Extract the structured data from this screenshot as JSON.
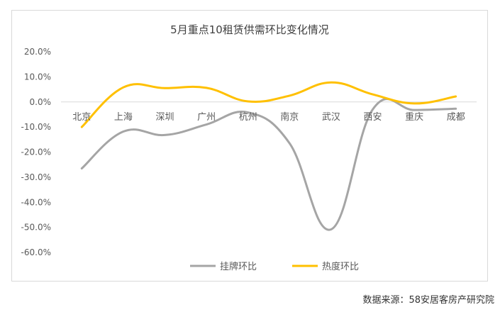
{
  "source": "数据来源：58安居客房产研究院",
  "colors": {
    "series1": "#a5a5a5",
    "series2": "#ffc000",
    "grid": "#d9d9d9",
    "text": "#595959",
    "title": "#404040"
  },
  "chart_data": {
    "type": "line",
    "title": "5月重点10租赁供需环比变化情况",
    "xlabel": "",
    "ylabel": "",
    "categories": [
      "北京",
      "上海",
      "深圳",
      "广州",
      "杭州",
      "南京",
      "武汉",
      "西安",
      "重庆",
      "成都"
    ],
    "y_ticks": [
      "20.0%",
      "10.0%",
      "0.0%",
      "-10.0%",
      "-20.0%",
      "-30.0%",
      "-40.0%",
      "-50.0%",
      "-60.0%"
    ],
    "ylim": [
      -60,
      20
    ],
    "grid": false,
    "legend_position": "bottom",
    "series": [
      {
        "name": "挂牌环比",
        "values": [
          -26.5,
          -11.8,
          -13.2,
          -9.0,
          -4.2,
          -16.5,
          -50.8,
          -3.0,
          -3.2,
          -2.7
        ]
      },
      {
        "name": "热度环比",
        "values": [
          -10.0,
          5.8,
          5.5,
          5.6,
          0.2,
          2.5,
          7.8,
          3.0,
          -0.6,
          2.2
        ]
      }
    ]
  }
}
